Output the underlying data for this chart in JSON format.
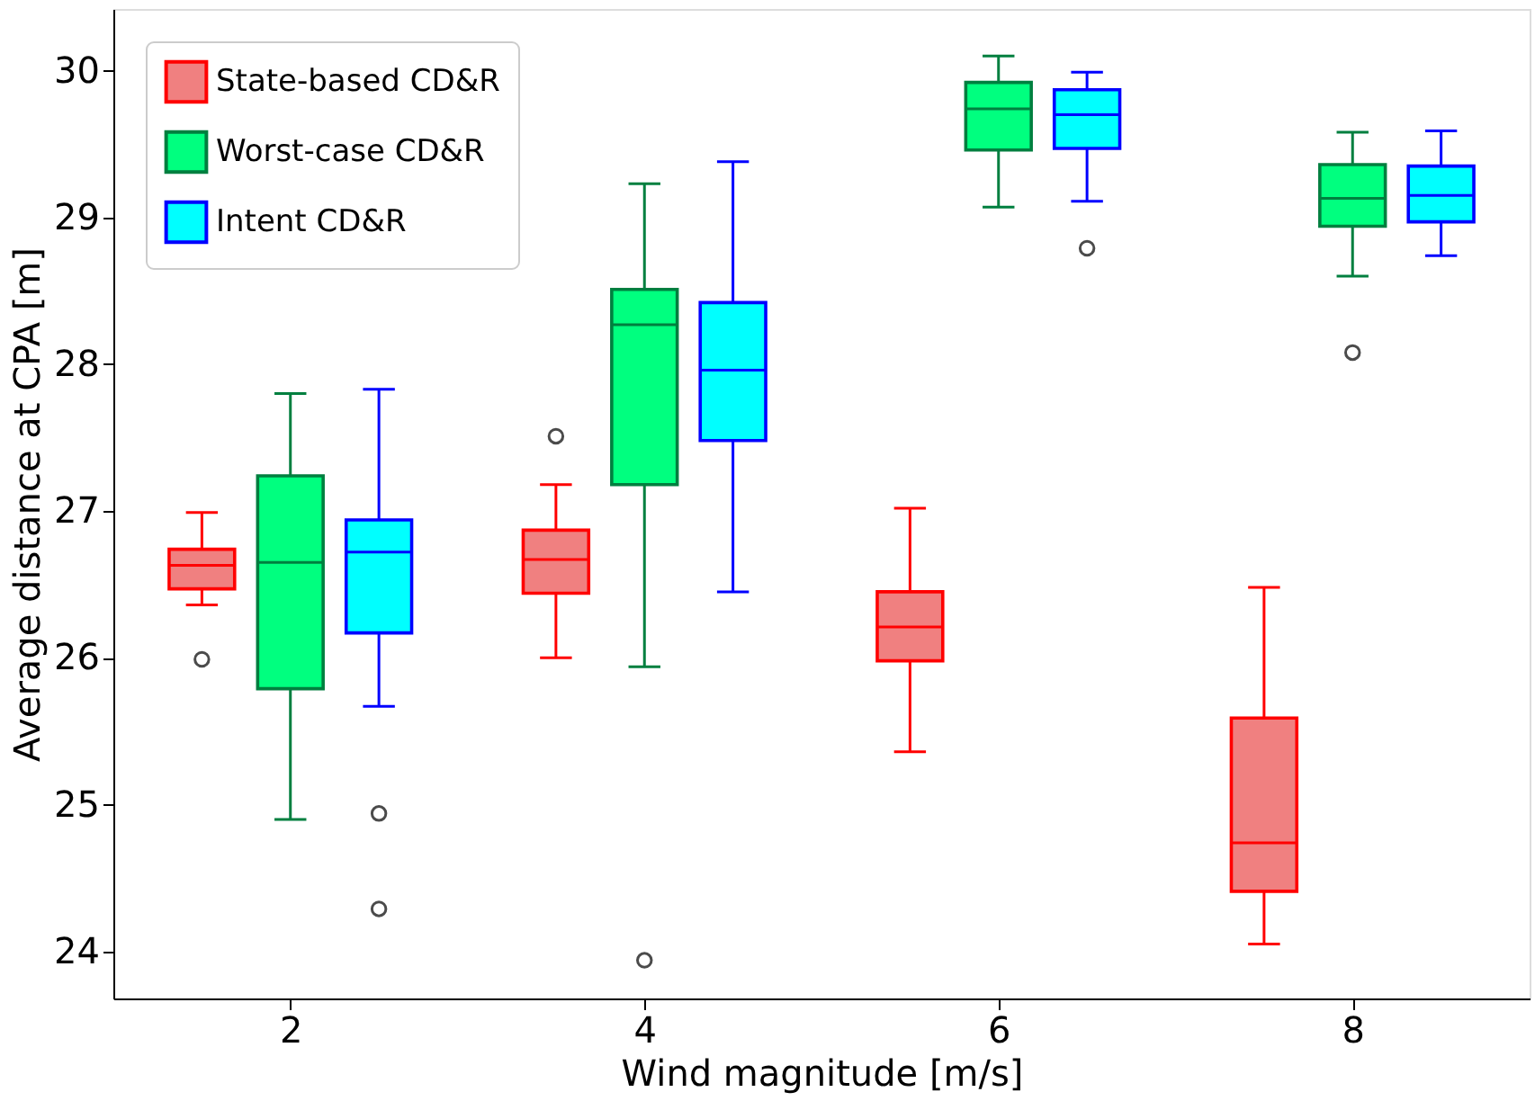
{
  "chart_data": {
    "type": "box",
    "xlabel": "Wind magnitude [m/s]",
    "ylabel": "Average distance at CPA [m]",
    "categories": [
      "2",
      "4",
      "6",
      "8"
    ],
    "ylim": [
      23.68,
      30.42
    ],
    "yticks": [
      24,
      25,
      26,
      27,
      28,
      29,
      30
    ],
    "grid": false,
    "legend": "top left",
    "series": [
      {
        "name": "State-based CD&R",
        "color": "#f08080",
        "boxes": [
          {
            "low": 26.36,
            "q1": 26.47,
            "median": 26.63,
            "q3": 26.74,
            "high": 26.99,
            "outliers": [
              25.99
            ]
          },
          {
            "low": 26.0,
            "q1": 26.44,
            "median": 26.67,
            "q3": 26.87,
            "high": 27.18,
            "outliers": [
              27.51
            ]
          },
          {
            "low": 25.36,
            "q1": 25.98,
            "median": 26.21,
            "q3": 26.45,
            "high": 27.02
          },
          {
            "low": 24.05,
            "q1": 24.41,
            "median": 24.74,
            "q3": 25.59,
            "high": 26.48
          }
        ]
      },
      {
        "name": "Worst-case CD&R",
        "color": "#00ff7f",
        "boxes": [
          {
            "low": 24.9,
            "q1": 25.79,
            "median": 26.65,
            "q3": 27.24,
            "high": 27.8
          },
          {
            "low": 25.94,
            "q1": 27.18,
            "median": 28.27,
            "q3": 28.51,
            "high": 29.23,
            "outliers": [
              23.94
            ]
          },
          {
            "low": 29.07,
            "q1": 29.46,
            "median": 29.74,
            "q3": 29.92,
            "high": 30.1
          },
          {
            "low": 28.6,
            "q1": 28.94,
            "median": 29.13,
            "q3": 29.36,
            "high": 29.58,
            "outliers": [
              28.08
            ]
          }
        ]
      },
      {
        "name": "Intent CD&R",
        "color": "#00ffff",
        "boxes": [
          {
            "low": 25.67,
            "q1": 26.17,
            "median": 26.72,
            "q3": 26.94,
            "high": 27.83,
            "outliers": [
              24.94,
              24.29
            ]
          },
          {
            "low": 26.45,
            "q1": 27.48,
            "median": 27.96,
            "q3": 28.42,
            "high": 29.38
          },
          {
            "low": 29.11,
            "q1": 29.47,
            "median": 29.7,
            "q3": 29.87,
            "high": 29.99,
            "outliers": [
              28.79
            ]
          },
          {
            "low": 28.74,
            "q1": 28.97,
            "median": 29.15,
            "q3": 29.35,
            "high": 29.59
          }
        ]
      }
    ]
  }
}
